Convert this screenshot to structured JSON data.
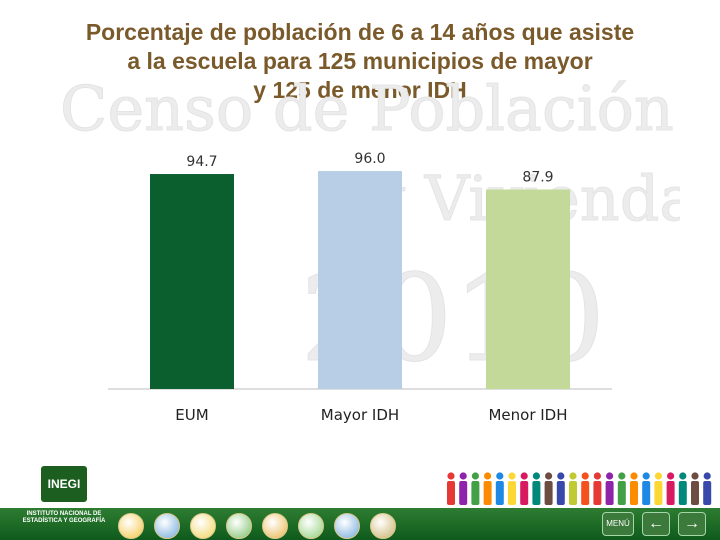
{
  "title": {
    "line1": "Porcentaje de población de 6 a 14 años que asiste",
    "line2": "a la escuela para 125 municipios de mayor",
    "line3": "y 125 de menor IDH"
  },
  "watermark": {
    "line1": "Censo de Población",
    "line2": "y Vivienda",
    "year": "2010"
  },
  "chart_data": {
    "type": "bar",
    "categories": [
      "EUM",
      "Mayor IDH",
      "Menor IDH"
    ],
    "values": [
      94.7,
      96.0,
      87.9
    ],
    "value_labels": [
      "94.7",
      "96.0",
      "87.9"
    ],
    "colors": [
      "#0b5e2e",
      "#b8cde6",
      "#c3d99a"
    ],
    "ylim": [
      0,
      100
    ],
    "grid": false,
    "legend": "none"
  },
  "footer": {
    "inegi_logo": "INEGI",
    "inegi_name": "INSTITUTO NACIONAL DE ESTADÍSTICA Y GEOGRAFÍA",
    "menu_label": "MENÚ",
    "prev_icon": "arrow-left-icon",
    "next_icon": "arrow-right-icon",
    "theme_icons": [
      "person-icon",
      "water-icon",
      "people-icon",
      "family-icon",
      "house-icon",
      "school-icon",
      "map-icon",
      "document-icon"
    ],
    "brand_color": "#0f5a1c"
  }
}
